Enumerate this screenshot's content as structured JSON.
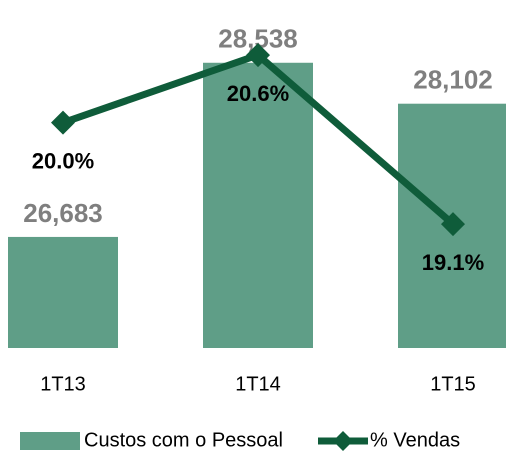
{
  "chart_data": {
    "type": "bar-line",
    "categories": [
      "1T13",
      "1T14",
      "1T15"
    ],
    "series": [
      {
        "name": "Custos com o Pessoal",
        "type": "bar",
        "color": "#5f9e87",
        "values": [
          26683,
          28538,
          28102
        ],
        "value_labels": [
          "26,683",
          "28,538",
          "28,102"
        ]
      },
      {
        "name": "% Vendas",
        "type": "line",
        "axis": "y2",
        "color": "#0f5c3a",
        "values": [
          20.0,
          20.6,
          19.1
        ],
        "value_labels": [
          "20.0%",
          "20.6%",
          "19.1%"
        ]
      }
    ],
    "ylim": [
      25500,
      29100
    ],
    "y2lim": [
      18,
      21
    ],
    "legend": "bottom"
  }
}
